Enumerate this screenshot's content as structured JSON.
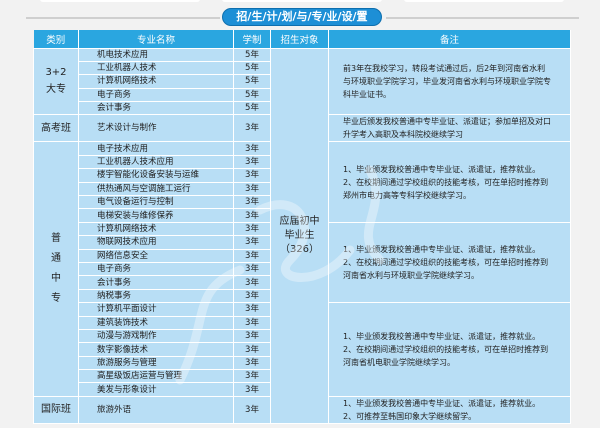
{
  "title": "招/生/计/划/与/专/业/设/置",
  "headers": [
    "类别",
    "专业名称",
    "学制",
    "招生对象",
    "备注"
  ],
  "target": {
    "line1": "应届初中",
    "line2": "毕业生",
    "count": "（326）"
  },
  "groups": [
    {
      "category": "3+2 大专",
      "rows": [
        [
          "机电技术应用",
          "5年"
        ],
        [
          "工业机器人技术",
          "5年"
        ],
        [
          "计算机网络技术",
          "5年"
        ],
        [
          "电子商务",
          "5年"
        ],
        [
          "会计事务",
          "5年"
        ]
      ],
      "remarks": [
        "前3年在我校学习，转段考试通过后，后2年到河南省水利与环境职业学院学习，毕业发河南省水利与环境职业学院专科毕业证书。"
      ]
    },
    {
      "category": "高考班",
      "rows": [
        [
          "艺术设计与制作",
          "3年"
        ]
      ],
      "remarks": [
        "毕业后颁发我校普通中专毕业证、派遣证；参加单招及对口升学考入高职及本科院校继续学习"
      ]
    },
    {
      "category": "普 通 中 专",
      "rows": [
        [
          "电子技术应用",
          "3年"
        ],
        [
          "工业机器人技术应用",
          "3年"
        ],
        [
          "楼宇智能化设备安装与运维",
          "3年"
        ],
        [
          "供热通风与空调施工运行",
          "3年"
        ],
        [
          "电气设备运行与控制",
          "3年"
        ],
        [
          "电梯安装与维修保养",
          "3年"
        ],
        [
          "计算机网络技术",
          "3年"
        ],
        [
          "物联网技术应用",
          "3年"
        ],
        [
          "网络信息安全",
          "3年"
        ],
        [
          "电子商务",
          "3年"
        ],
        [
          "会计事务",
          "3年"
        ],
        [
          "纳税事务",
          "3年"
        ],
        [
          "计算机平面设计",
          "3年"
        ],
        [
          "建筑装饰技术",
          "3年"
        ],
        [
          "动漫与游戏制作",
          "3年"
        ],
        [
          "数字影像技术",
          "3年"
        ],
        [
          "旅游服务与管理",
          "3年"
        ],
        [
          "高星级饭店运营与管理",
          "3年"
        ],
        [
          "美发与形象设计",
          "3年"
        ]
      ],
      "remarks": [
        "1、毕业颁发我校普通中专毕业证、派遣证，推荐就业。 2、在校期间通过学校组织的技能考核，可在单招时推荐到郑州市电力高等专科学校继续学习。",
        "1、毕业颁发我校普通中专毕业证、派遣证，推荐就业。 2、在校期间通过学校组织的技能考核，可在单招时推荐到河南省水利与环境职业学院继续学习。",
        "1、毕业颁发我校普通中专毕业证、派遣证，推荐就业。 2、在校期间通过学校组织的技能考核，可在单招时推荐到河南省机电职业学院继续学习。"
      ]
    },
    {
      "category": "国际班",
      "rows": [
        [
          "旅游外语",
          "3年"
        ]
      ],
      "remarks": [
        "1、毕业颁发我校普通中专毕业证、派遣证，推荐就业。 2、可推荐至韩国印象大学继续留学。"
      ]
    }
  ],
  "colors": {
    "header": "#2aa6e0",
    "cell": "#b8def5",
    "title_pill": "#1d8fd6"
  }
}
